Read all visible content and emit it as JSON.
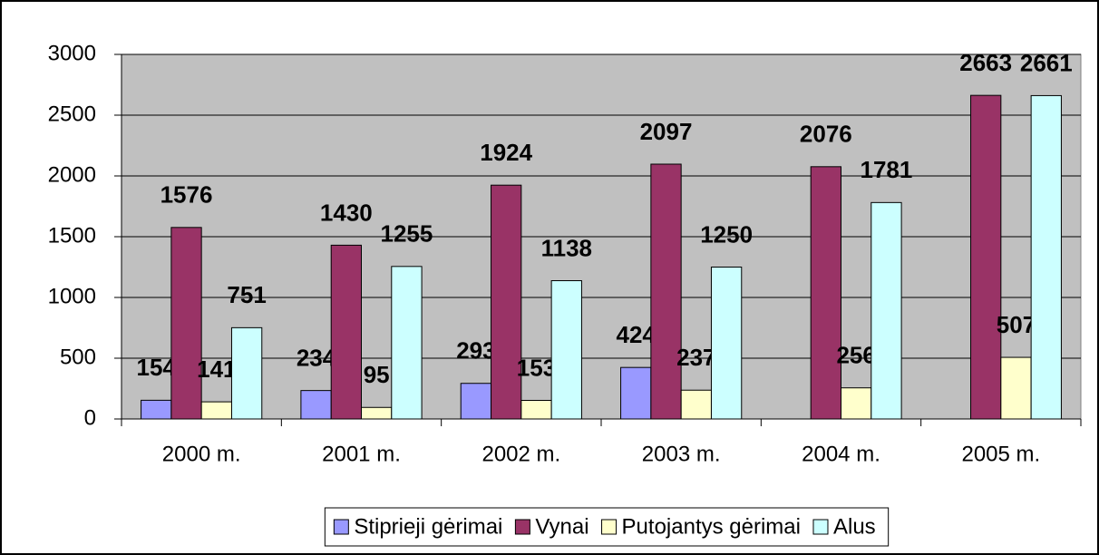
{
  "chart_data": {
    "type": "bar",
    "categories": [
      "2000 m.",
      "2001 m.",
      "2002 m.",
      "2003 m.",
      "2004 m.",
      "2005 m."
    ],
    "series": [
      {
        "name": "Stiprieji gėrimai",
        "color": "#9999ff",
        "values": [
          154,
          234,
          293,
          424,
          null,
          null
        ]
      },
      {
        "name": "Vynai",
        "color": "#993366",
        "values": [
          1576,
          1430,
          1924,
          2097,
          2076,
          2663
        ]
      },
      {
        "name": "Putojantys gėrimai",
        "color": "#ffffcc",
        "values": [
          141,
          95,
          153,
          237,
          256,
          507
        ]
      },
      {
        "name": "Alus",
        "color": "#ccffff",
        "values": [
          751,
          1255,
          1138,
          1250,
          1781,
          2661
        ]
      }
    ],
    "ylim": [
      0,
      3000
    ],
    "yticks": [
      0,
      500,
      1000,
      1500,
      2000,
      2500,
      3000
    ],
    "grid": true,
    "legend": "bottom",
    "plot_background": "#c0c0c0"
  }
}
